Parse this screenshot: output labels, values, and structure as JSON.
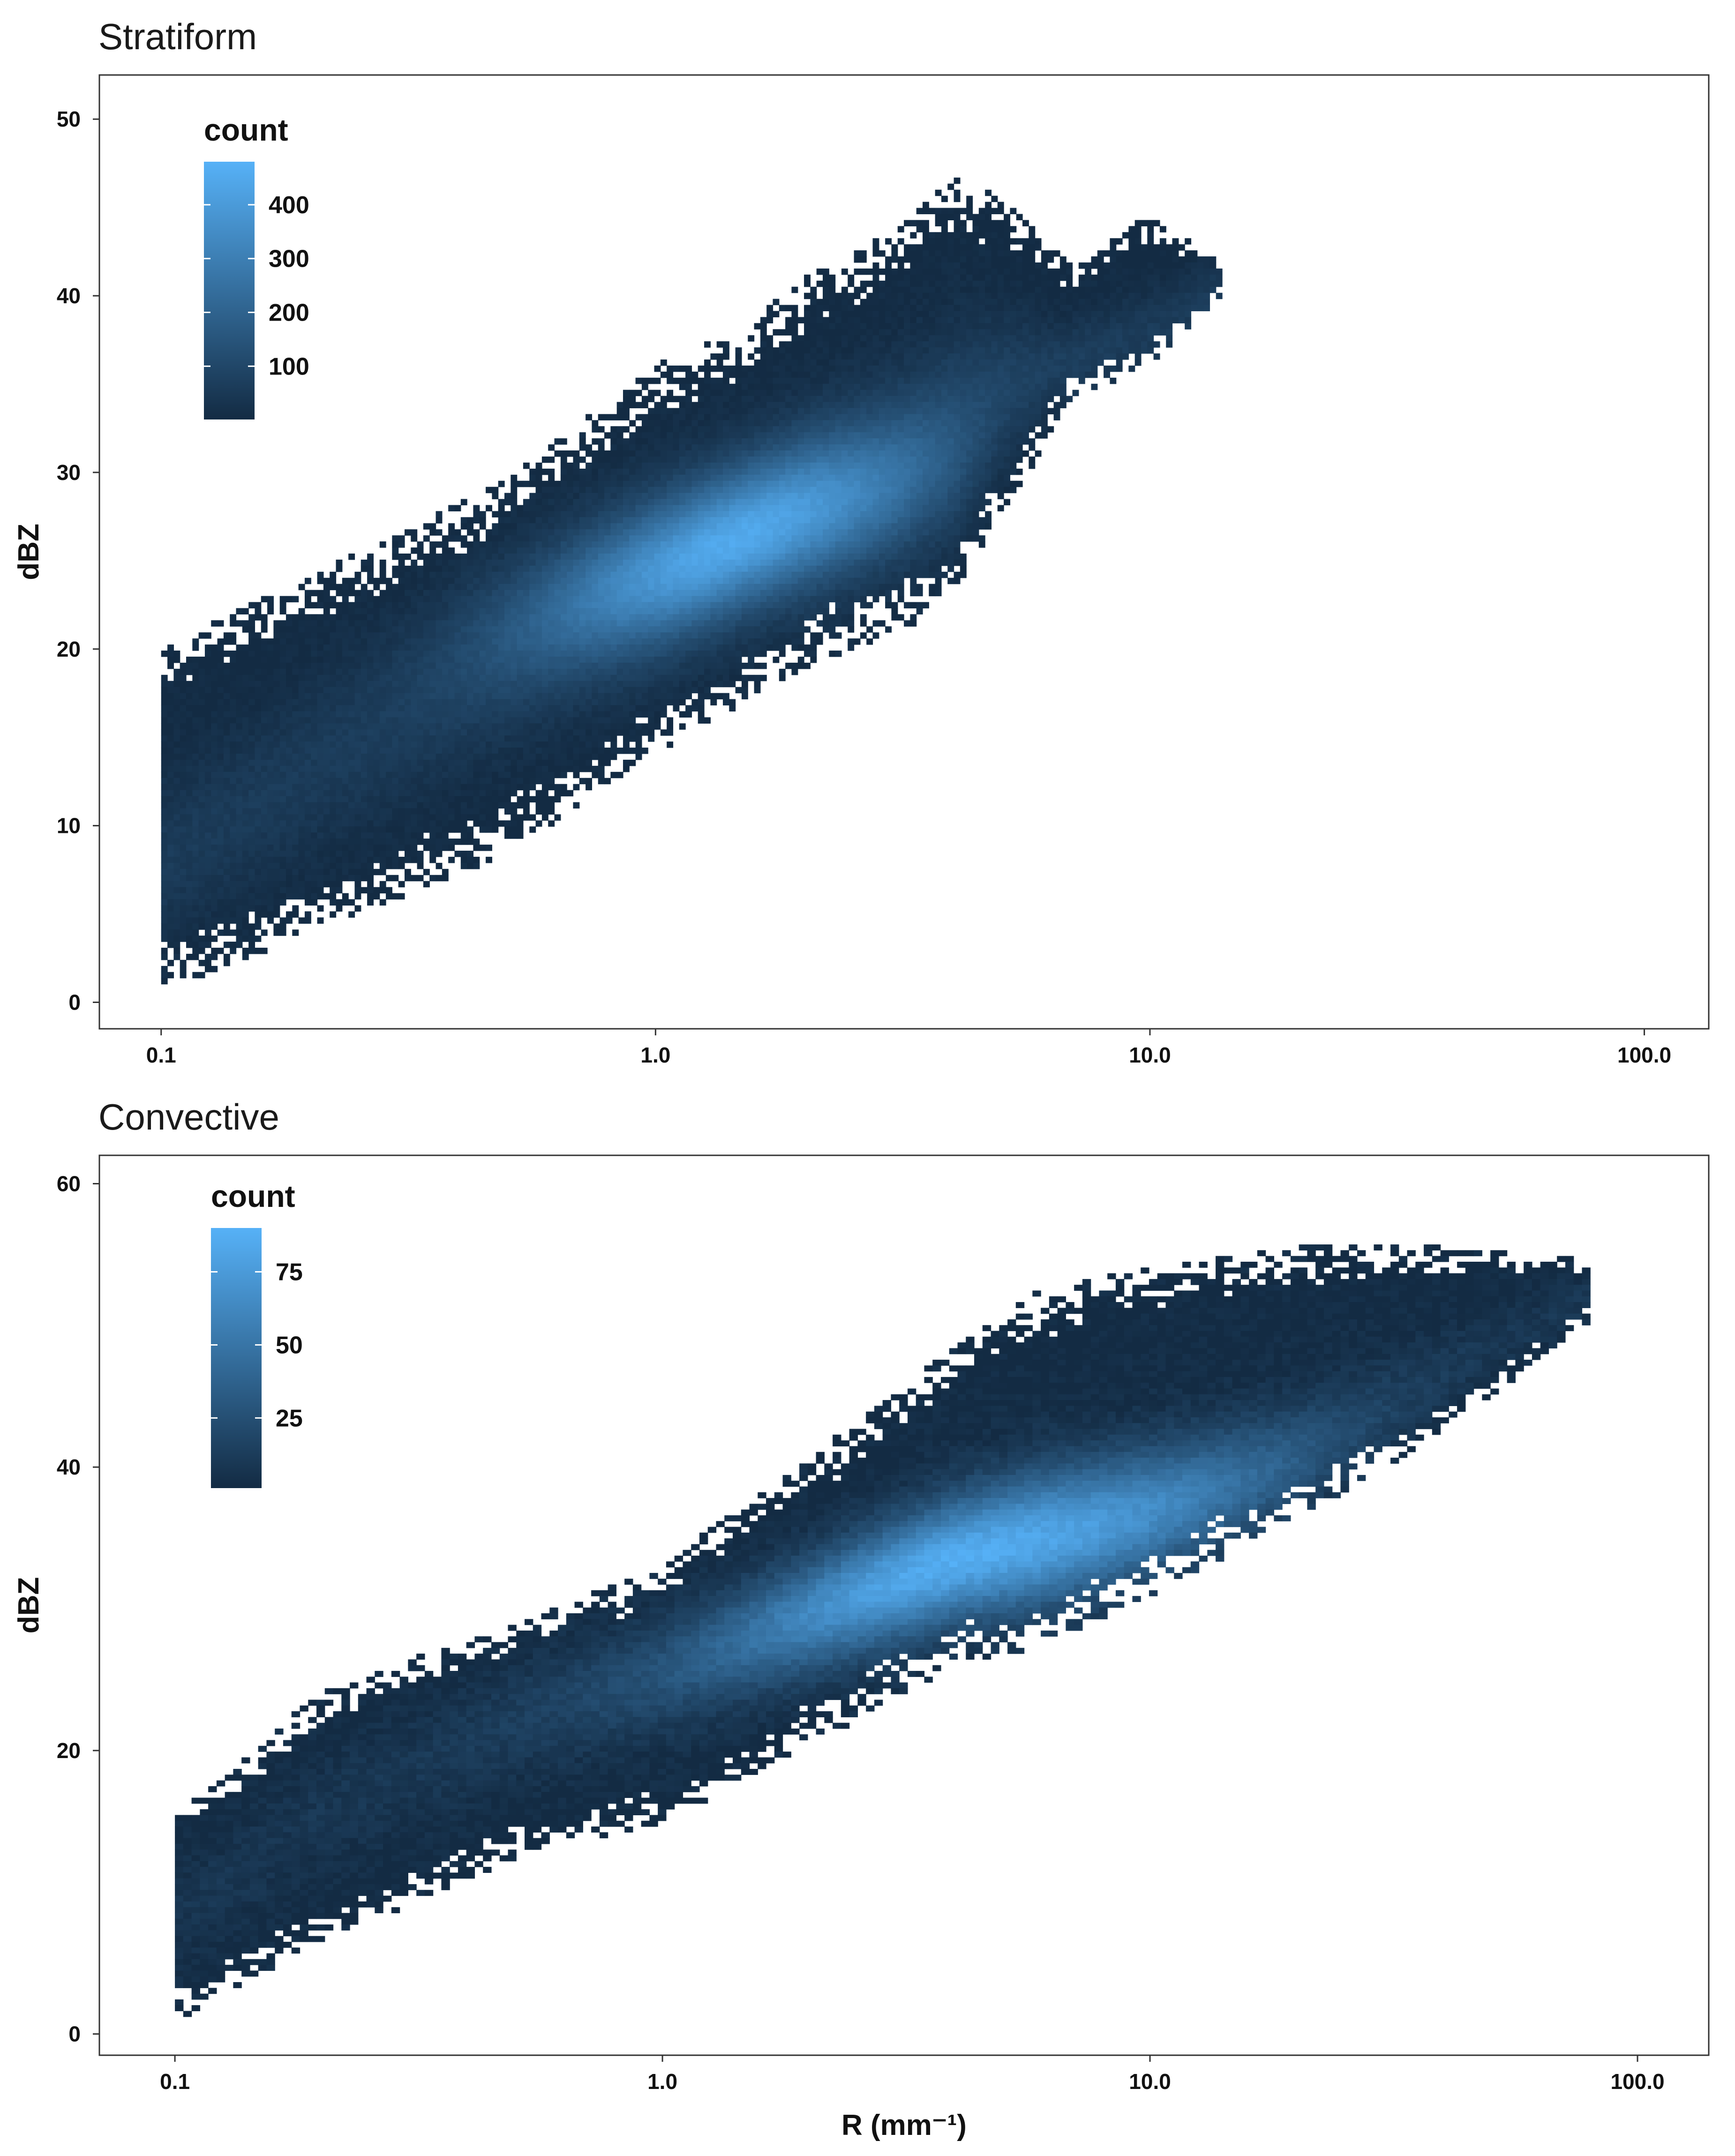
{
  "chart_data": [
    {
      "type": "heatmap",
      "title": "Stratiform",
      "xlabel": "",
      "ylabel": "dBZ",
      "x_scale": "log10",
      "xlim": [
        0.075,
        135
      ],
      "ylim": [
        -1.5,
        52.5
      ],
      "x_ticks": [
        0.1,
        1.0,
        10.0,
        100.0
      ],
      "x_tick_labels": [
        "0.1",
        "1.0",
        "10.0",
        "100.0"
      ],
      "y_ticks": [
        0,
        10,
        20,
        30,
        40,
        50
      ],
      "y_tick_labels": [
        "0",
        "10",
        "20",
        "30",
        "40",
        "50"
      ],
      "grid": false,
      "legend": {
        "title": "count",
        "position": "top-left inside",
        "ticks": [
          100,
          200,
          300,
          400
        ],
        "tick_labels": [
          "100",
          "200",
          "300",
          "400"
        ],
        "min": 1,
        "max": 480,
        "color_low": "#132B43",
        "color_high": "#56B1F7"
      },
      "density_ridge": {
        "x": [
          0.1,
          0.2,
          0.5,
          1.0,
          1.5,
          2.0,
          3.0,
          4.0,
          5.0,
          7.0,
          10.0,
          14.0
        ],
        "y_center": [
          8.0,
          13.0,
          19.0,
          23.5,
          26.5,
          28.5,
          31.0,
          33.5,
          35.5,
          36.5,
          38.0,
          40.0
        ],
        "y_low": [
          1.0,
          4.5,
          9.0,
          14.5,
          17.5,
          19.5,
          21.5,
          23.0,
          28.0,
          35.0,
          36.5,
          40.5
        ],
        "y_high": [
          19.5,
          23.5,
          29.0,
          35.5,
          37.5,
          40.5,
          43.0,
          46.0,
          45.0,
          41.0,
          44.0,
          41.5
        ],
        "peak_count": 480,
        "peak_location": [
          1.5,
          26.0
        ]
      }
    },
    {
      "type": "heatmap",
      "title": "Convective",
      "xlabel": "R (mm⁻¹)",
      "ylabel": "dBZ",
      "x_scale": "log10",
      "xlim": [
        0.07,
        140
      ],
      "ylim": [
        -1.5,
        62
      ],
      "x_ticks": [
        0.1,
        1.0,
        10.0,
        100.0
      ],
      "x_tick_labels": [
        "0.1",
        "1.0",
        "10.0",
        "100.0"
      ],
      "y_ticks": [
        0,
        20,
        40,
        60
      ],
      "y_tick_labels": [
        "0",
        "20",
        "40",
        "60"
      ],
      "grid": false,
      "legend": {
        "title": "count",
        "position": "top-left inside",
        "ticks": [
          25,
          50,
          75
        ],
        "tick_labels": [
          "25",
          "50",
          "75"
        ],
        "min": 1,
        "max": 90,
        "color_low": "#132B43",
        "color_high": "#56B1F7"
      },
      "density_ridge": {
        "x": [
          0.1,
          0.2,
          0.5,
          1.0,
          2.0,
          4.0,
          6.0,
          10.0,
          20.0,
          40.0,
          80.0
        ],
        "y_center": [
          8.0,
          15.5,
          21.0,
          24.0,
          28.5,
          33.5,
          35.5,
          38.0,
          42.0,
          47.0,
          52.0
        ],
        "y_low": [
          1.5,
          7.0,
          13.0,
          15.5,
          21.0,
          26.5,
          28.0,
          31.5,
          37.0,
          43.0,
          51.0
        ],
        "y_high": [
          15.0,
          23.5,
          28.5,
          32.5,
          40.0,
          48.0,
          52.0,
          53.5,
          55.0,
          55.0,
          54.0
        ],
        "peak_count": 90,
        "peak_location": [
          4.3,
          33.5
        ]
      }
    }
  ]
}
